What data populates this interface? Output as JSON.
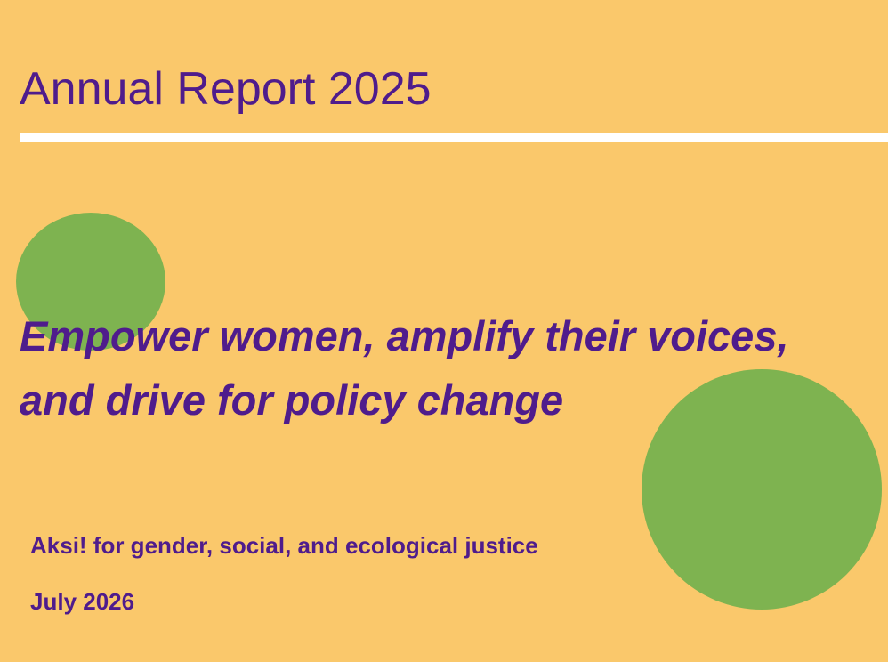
{
  "header": {
    "title": "Annual Report 2025"
  },
  "headline": "Empower women, amplify their voices, and drive for policy change",
  "organization": "Aksi! for gender, social, and ecological justice",
  "date": "July 2026"
}
